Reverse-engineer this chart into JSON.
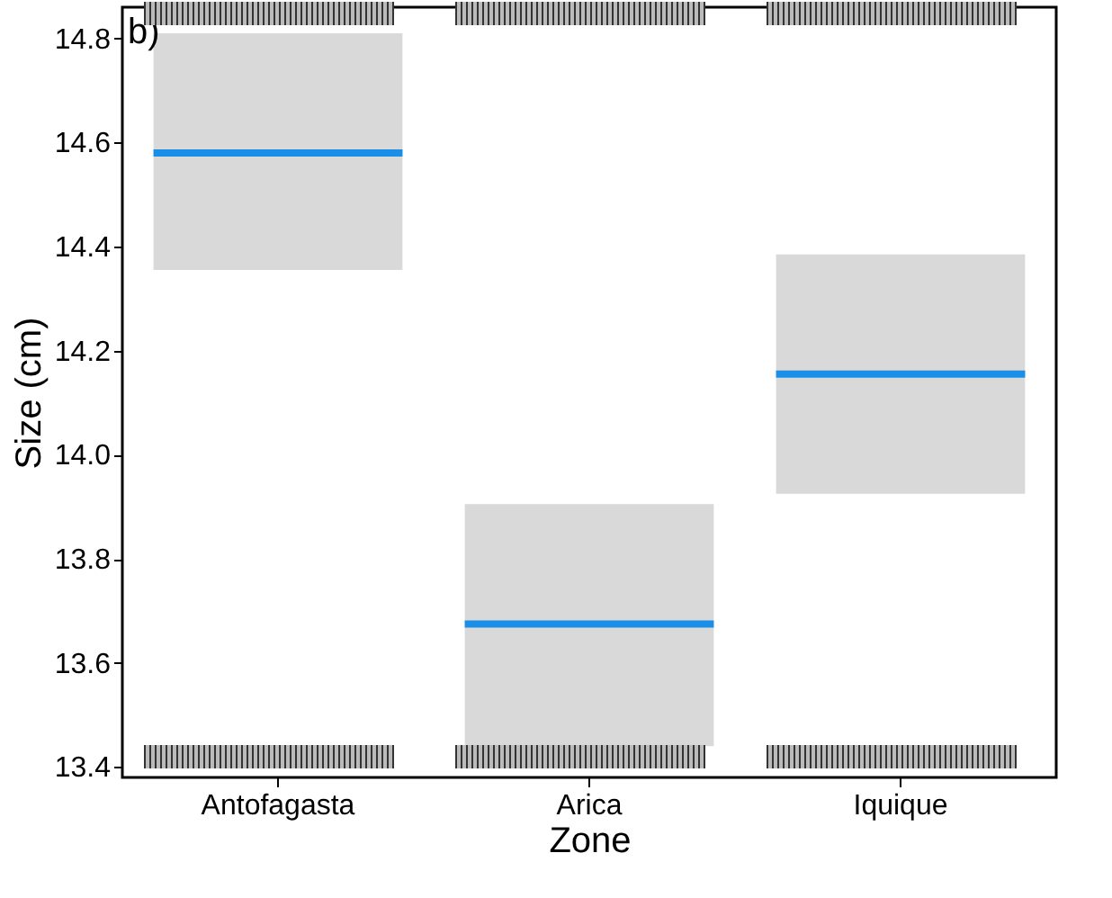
{
  "chart_data": {
    "type": "box",
    "annotations": [
      "b)"
    ],
    "xlabel": "Zone",
    "ylabel": "Size (cm)",
    "categories": [
      "Antofagasta",
      "Arica",
      "Iquique"
    ],
    "series": [
      {
        "color": "#d9d9d9",
        "boxes": [
          {
            "low": 14.355,
            "q1": 14.355,
            "median": 14.58,
            "q3": 14.81,
            "high": 14.81
          },
          {
            "low": 13.44,
            "q1": 13.44,
            "median": 13.675,
            "q3": 13.905,
            "high": 13.905
          },
          {
            "low": 13.925,
            "q1": 13.925,
            "median": 14.155,
            "q3": 14.385,
            "high": 14.385
          }
        ]
      }
    ],
    "ylim": [
      13.38,
      14.86
    ],
    "yticks": [
      13.4,
      13.6,
      13.8,
      {
        "value": 14,
        "label": "14.0"
      },
      14.2,
      14.4,
      14.6,
      14.8
    ],
    "grid": false,
    "legend": false
  }
}
